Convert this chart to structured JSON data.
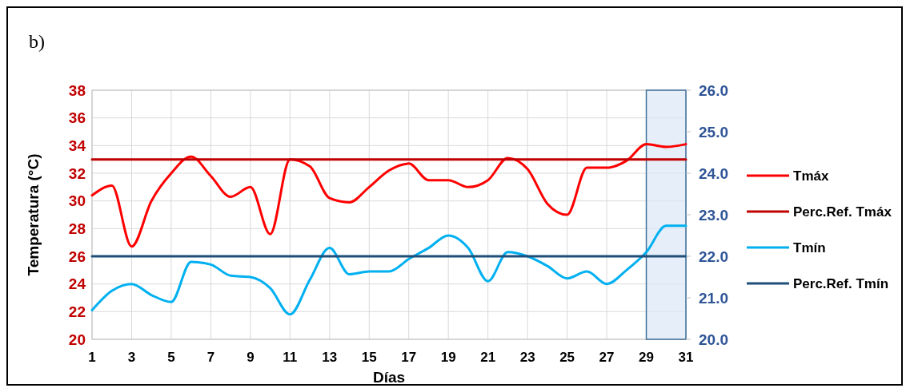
{
  "chart_data": {
    "type": "line",
    "title": "b)",
    "xlabel": "Días",
    "ylabel": "Temperatura (°C)",
    "x": [
      1,
      2,
      3,
      4,
      5,
      6,
      7,
      8,
      9,
      10,
      11,
      12,
      13,
      14,
      15,
      16,
      17,
      18,
      19,
      20,
      21,
      22,
      23,
      24,
      25,
      26,
      27,
      28,
      29,
      30,
      31
    ],
    "series": [
      {
        "name": "Tmáx",
        "color": "#ff0000",
        "values": [
          30.4,
          31.1,
          26.7,
          30.0,
          32.0,
          33.2,
          31.8,
          30.3,
          31.0,
          27.6,
          33.0,
          32.5,
          30.2,
          29.9,
          31.0,
          32.2,
          32.7,
          31.5,
          31.5,
          31.0,
          31.5,
          33.1,
          32.3,
          29.8,
          29.0,
          32.4,
          32.4,
          32.9,
          34.1,
          33.9,
          34.1
        ]
      },
      {
        "name": "Perc.Ref. Tmáx",
        "color": "#c00000",
        "values": [
          33,
          33,
          33,
          33,
          33,
          33,
          33,
          33,
          33,
          33,
          33,
          33,
          33,
          33,
          33,
          33,
          33,
          33,
          33,
          33,
          33,
          33,
          33,
          33,
          33,
          33,
          33,
          33,
          33,
          33,
          33
        ]
      },
      {
        "name": "Tmín",
        "color": "#00b0f0",
        "values": [
          22.1,
          23.5,
          24.0,
          23.2,
          22.7,
          25.6,
          25.4,
          24.6,
          24.5,
          23.7,
          21.8,
          24.3,
          26.6,
          24.7,
          24.9,
          24.9,
          25.8,
          26.6,
          27.5,
          26.6,
          24.2,
          26.3,
          26.0,
          25.3,
          24.4,
          24.9,
          24.0,
          25.0,
          26.3,
          28.2,
          28.2
        ]
      },
      {
        "name": "Perc.Ref. Tmín",
        "color": "#1f4e79",
        "values": [
          26,
          26,
          26,
          26,
          26,
          26,
          26,
          26,
          26,
          26,
          26,
          26,
          26,
          26,
          26,
          26,
          26,
          26,
          26,
          26,
          26,
          26,
          26,
          26,
          26,
          26,
          26,
          26,
          26,
          26,
          26
        ]
      }
    ],
    "xlim": [
      1,
      31
    ],
    "xticks": [
      1,
      3,
      5,
      7,
      9,
      11,
      13,
      15,
      17,
      19,
      21,
      23,
      25,
      27,
      29,
      31
    ],
    "ylim": [
      20,
      38
    ],
    "yticks": [
      20,
      22,
      24,
      26,
      28,
      30,
      32,
      34,
      36,
      38
    ],
    "y2lim": [
      20,
      26
    ],
    "y2ticks": [
      {
        "value": 20,
        "label": "20.0"
      },
      {
        "value": 21,
        "label": "21.0"
      },
      {
        "value": 22,
        "label": "22.0"
      },
      {
        "value": 23,
        "label": "23.0"
      },
      {
        "value": 24,
        "label": "24.0"
      },
      {
        "value": 25,
        "label": "25.0"
      },
      {
        "value": 26,
        "label": "26.0"
      }
    ],
    "bands": [
      {
        "axis": "x",
        "from": 29,
        "to": 31,
        "color": "#dce8f7"
      }
    ],
    "grid": true,
    "legend": "right",
    "line_style": "solid",
    "marker": "none"
  }
}
